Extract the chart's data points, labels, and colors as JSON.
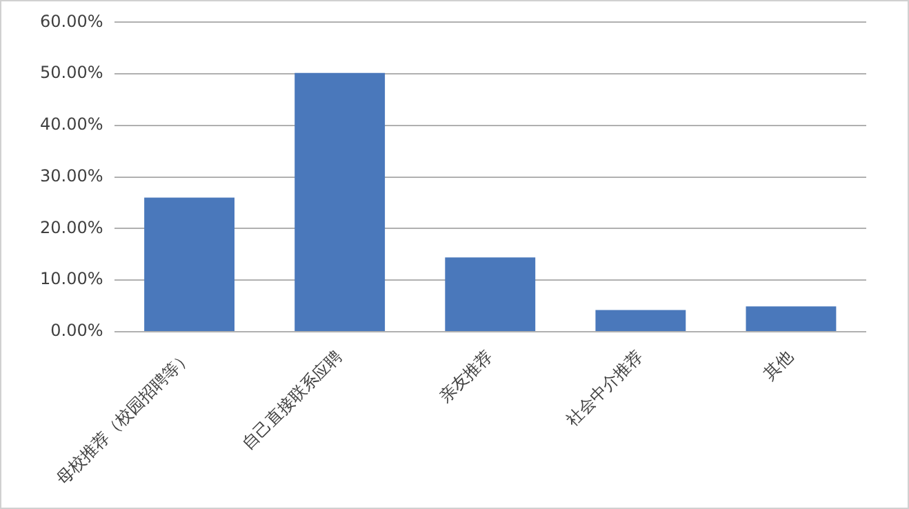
{
  "chart_data": {
    "type": "bar",
    "categories": [
      "母校推荐（校园招聘等）",
      "自己直接联系应聘",
      "亲友推荐",
      "社会中介推荐",
      "其他"
    ],
    "values": [
      26,
      50.2,
      14.4,
      4.2,
      4.9
    ],
    "color": "#4a78bb",
    "ylim": [
      0,
      60
    ],
    "yticks": [
      {
        "value": 0,
        "label": "0.00%"
      },
      {
        "value": 10,
        "label": "10.00%"
      },
      {
        "value": 20,
        "label": "20.00%"
      },
      {
        "value": 30,
        "label": "30.00%"
      },
      {
        "value": 40,
        "label": "40.00%"
      },
      {
        "value": 50,
        "label": "50.00%"
      },
      {
        "value": 60,
        "label": "60.00%"
      }
    ],
    "grid": "y",
    "legend": false
  }
}
